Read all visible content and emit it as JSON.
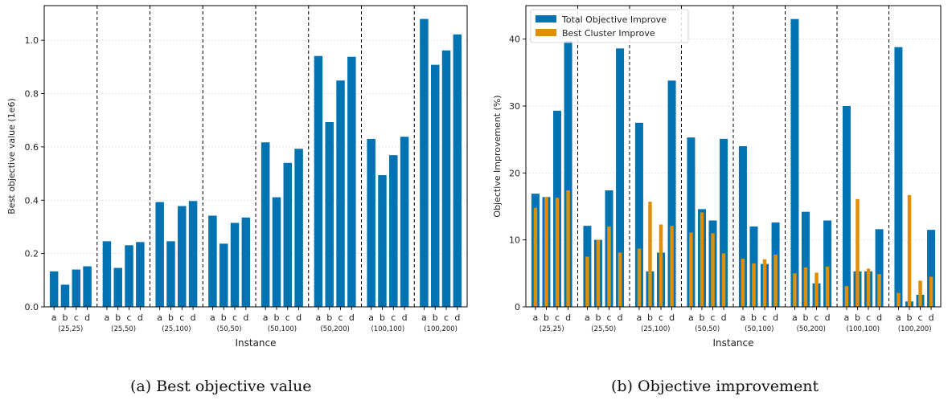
{
  "chart_data": [
    {
      "type": "bar",
      "ylabel": "Best objective value (1e6)",
      "xlabel": "Instance",
      "ylim": [
        0,
        1.13
      ],
      "yticks": [
        0.0,
        0.2,
        0.4,
        0.6,
        0.8,
        1.0
      ],
      "ytick_labels": [
        "0.0",
        "0.2",
        "0.4",
        "0.6",
        "0.8",
        "1.0"
      ],
      "grid": "horizontal dotted",
      "bar_color": "#0173b2",
      "subcategories": [
        "a",
        "b",
        "c",
        "d"
      ],
      "groups": [
        {
          "label": "(25,25)",
          "values": [
            0.133,
            0.083,
            0.14,
            0.152
          ]
        },
        {
          "label": "(25,50)",
          "values": [
            0.246,
            0.146,
            0.231,
            0.243
          ]
        },
        {
          "label": "(25,100)",
          "values": [
            0.393,
            0.246,
            0.378,
            0.397
          ]
        },
        {
          "label": "(50,50)",
          "values": [
            0.342,
            0.237,
            0.315,
            0.335
          ]
        },
        {
          "label": "(50,100)",
          "values": [
            0.617,
            0.411,
            0.54,
            0.593
          ]
        },
        {
          "label": "(50,200)",
          "values": [
            0.941,
            0.693,
            0.849,
            0.938
          ]
        },
        {
          "label": "(100,100)",
          "values": [
            0.63,
            0.494,
            0.569,
            0.638
          ]
        },
        {
          "label": "(100,200)",
          "values": [
            1.08,
            0.908,
            0.962,
            1.022
          ]
        }
      ],
      "caption": "(a) Best objective value"
    },
    {
      "type": "bar",
      "ylabel": "Objective Improvement (%)",
      "xlabel": "Instance",
      "ylim": [
        0,
        45
      ],
      "yticks": [
        0,
        10,
        20,
        30,
        40
      ],
      "ytick_labels": [
        "0",
        "10",
        "20",
        "30",
        "40"
      ],
      "grid": "horizontal dotted",
      "legend_position": "top-left",
      "subcategories": [
        "a",
        "b",
        "c",
        "d"
      ],
      "series": [
        {
          "name": "Total Objective Improve",
          "color": "#0173b2"
        },
        {
          "name": "Best Cluster Improve",
          "color": "#de8f05"
        }
      ],
      "groups": [
        {
          "label": "(25,25)",
          "total": [
            16.9,
            16.4,
            29.3,
            39.7
          ],
          "cluster": [
            14.8,
            16.4,
            16.3,
            17.4
          ]
        },
        {
          "label": "(25,50)",
          "total": [
            12.1,
            10.0,
            17.4,
            38.6
          ],
          "cluster": [
            7.5,
            10.0,
            12.0,
            8.1
          ]
        },
        {
          "label": "(25,100)",
          "total": [
            27.5,
            5.3,
            8.1,
            33.8
          ],
          "cluster": [
            8.7,
            15.7,
            12.3,
            12.1
          ]
        },
        {
          "label": "(50,50)",
          "total": [
            25.3,
            14.6,
            12.9,
            25.1
          ],
          "cluster": [
            11.1,
            14.1,
            11.0,
            8.0
          ]
        },
        {
          "label": "(50,100)",
          "total": [
            24.0,
            12.0,
            6.4,
            12.6
          ],
          "cluster": [
            7.2,
            6.5,
            7.1,
            7.8
          ]
        },
        {
          "label": "(50,200)",
          "total": [
            43.0,
            14.2,
            3.5,
            12.9
          ],
          "cluster": [
            5.0,
            5.9,
            5.1,
            6.0
          ]
        },
        {
          "label": "(100,100)",
          "total": [
            30.0,
            5.3,
            5.3,
            11.6
          ],
          "cluster": [
            3.1,
            16.1,
            5.7,
            4.9
          ]
        },
        {
          "label": "(100,200)",
          "total": [
            38.8,
            0.8,
            1.8,
            11.5
          ],
          "cluster": [
            2.1,
            16.7,
            3.9,
            4.5
          ]
        }
      ],
      "caption": "(b) Objective improvement"
    }
  ]
}
